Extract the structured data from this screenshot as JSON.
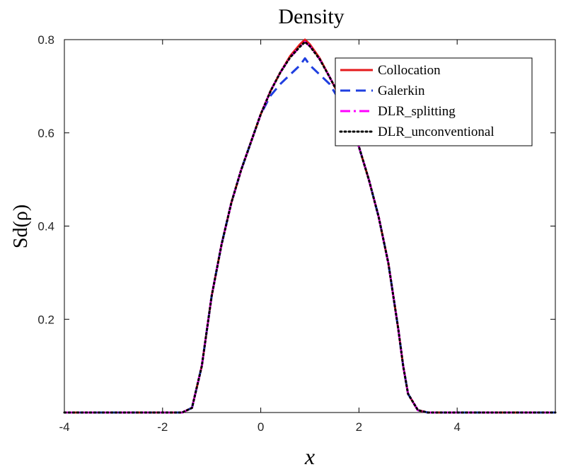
{
  "chart_data": {
    "type": "line",
    "title": "Density",
    "xlabel": "x",
    "ylabel": "Sd(ρ)",
    "xlim": [
      -4,
      6
    ],
    "ylim": [
      0,
      0.8
    ],
    "x_ticks": [
      -4,
      -2,
      0,
      2,
      4
    ],
    "x_tick_labels": [
      "-4",
      "-2",
      "0",
      "2",
      "4"
    ],
    "y_ticks": [
      0.2,
      0.4,
      0.6,
      0.8
    ],
    "y_tick_labels": [
      "0.2",
      "0.4",
      "0.6",
      "0.8"
    ],
    "grid": false,
    "legend_position": "top-right",
    "series": [
      {
        "name": "Collocation",
        "color": "#e41a1c",
        "style": "solid",
        "x": [
          -4,
          -2,
          -1.6,
          -1.4,
          -1.2,
          -1.0,
          -0.8,
          -0.6,
          -0.4,
          -0.2,
          0.0,
          0.2,
          0.4,
          0.6,
          0.8,
          0.9,
          1.0,
          1.2,
          1.4,
          1.6,
          1.8,
          2.0,
          2.2,
          2.4,
          2.6,
          2.8,
          2.9,
          3.0,
          3.2,
          3.4,
          4,
          6
        ],
        "values": [
          0,
          0,
          0.0,
          0.01,
          0.1,
          0.25,
          0.36,
          0.45,
          0.52,
          0.58,
          0.64,
          0.69,
          0.73,
          0.765,
          0.79,
          0.8,
          0.79,
          0.76,
          0.72,
          0.68,
          0.63,
          0.57,
          0.5,
          0.42,
          0.32,
          0.18,
          0.1,
          0.04,
          0.005,
          0.0,
          0,
          0
        ]
      },
      {
        "name": "Galerkin",
        "color": "#1f3fe0",
        "style": "dashed",
        "x": [
          -4,
          -2,
          -1.6,
          -1.4,
          -1.2,
          -1.0,
          -0.8,
          -0.6,
          -0.4,
          -0.2,
          0.0,
          0.2,
          0.4,
          0.6,
          0.8,
          0.9,
          1.0,
          1.2,
          1.4,
          1.6,
          1.8,
          2.0,
          2.2,
          2.4,
          2.6,
          2.8,
          2.9,
          3.0,
          3.2,
          3.4,
          4,
          6
        ],
        "values": [
          0,
          0,
          0.0,
          0.01,
          0.1,
          0.25,
          0.36,
          0.45,
          0.52,
          0.58,
          0.64,
          0.68,
          0.705,
          0.725,
          0.745,
          0.76,
          0.745,
          0.725,
          0.705,
          0.67,
          0.63,
          0.57,
          0.5,
          0.42,
          0.32,
          0.18,
          0.1,
          0.04,
          0.005,
          0.0,
          0,
          0
        ]
      },
      {
        "name": "DLR_splitting",
        "color": "#ff00ff",
        "style": "dashdot",
        "x": [
          -4,
          -2,
          -1.6,
          -1.4,
          -1.2,
          -1.0,
          -0.8,
          -0.6,
          -0.4,
          -0.2,
          0.0,
          0.2,
          0.4,
          0.6,
          0.8,
          0.9,
          1.0,
          1.2,
          1.4,
          1.6,
          1.8,
          2.0,
          2.2,
          2.4,
          2.6,
          2.8,
          2.9,
          3.0,
          3.2,
          3.4,
          4,
          6
        ],
        "values": [
          0,
          0,
          0.0,
          0.01,
          0.1,
          0.25,
          0.36,
          0.45,
          0.52,
          0.58,
          0.64,
          0.69,
          0.73,
          0.762,
          0.785,
          0.795,
          0.786,
          0.758,
          0.72,
          0.68,
          0.63,
          0.57,
          0.5,
          0.42,
          0.32,
          0.18,
          0.1,
          0.04,
          0.005,
          0.0,
          0,
          0
        ]
      },
      {
        "name": "DLR_unconventional",
        "color": "#000000",
        "style": "dotted",
        "x": [
          -4,
          -2,
          -1.6,
          -1.4,
          -1.2,
          -1.0,
          -0.8,
          -0.6,
          -0.4,
          -0.2,
          0.0,
          0.2,
          0.4,
          0.6,
          0.8,
          0.9,
          1.0,
          1.2,
          1.4,
          1.6,
          1.8,
          2.0,
          2.2,
          2.4,
          2.6,
          2.8,
          2.9,
          3.0,
          3.2,
          3.4,
          4,
          6
        ],
        "values": [
          0,
          0,
          0.0,
          0.01,
          0.1,
          0.25,
          0.36,
          0.45,
          0.52,
          0.58,
          0.64,
          0.69,
          0.73,
          0.762,
          0.785,
          0.795,
          0.786,
          0.758,
          0.72,
          0.68,
          0.63,
          0.57,
          0.5,
          0.42,
          0.32,
          0.18,
          0.1,
          0.04,
          0.005,
          0.0,
          0,
          0
        ]
      }
    ]
  }
}
